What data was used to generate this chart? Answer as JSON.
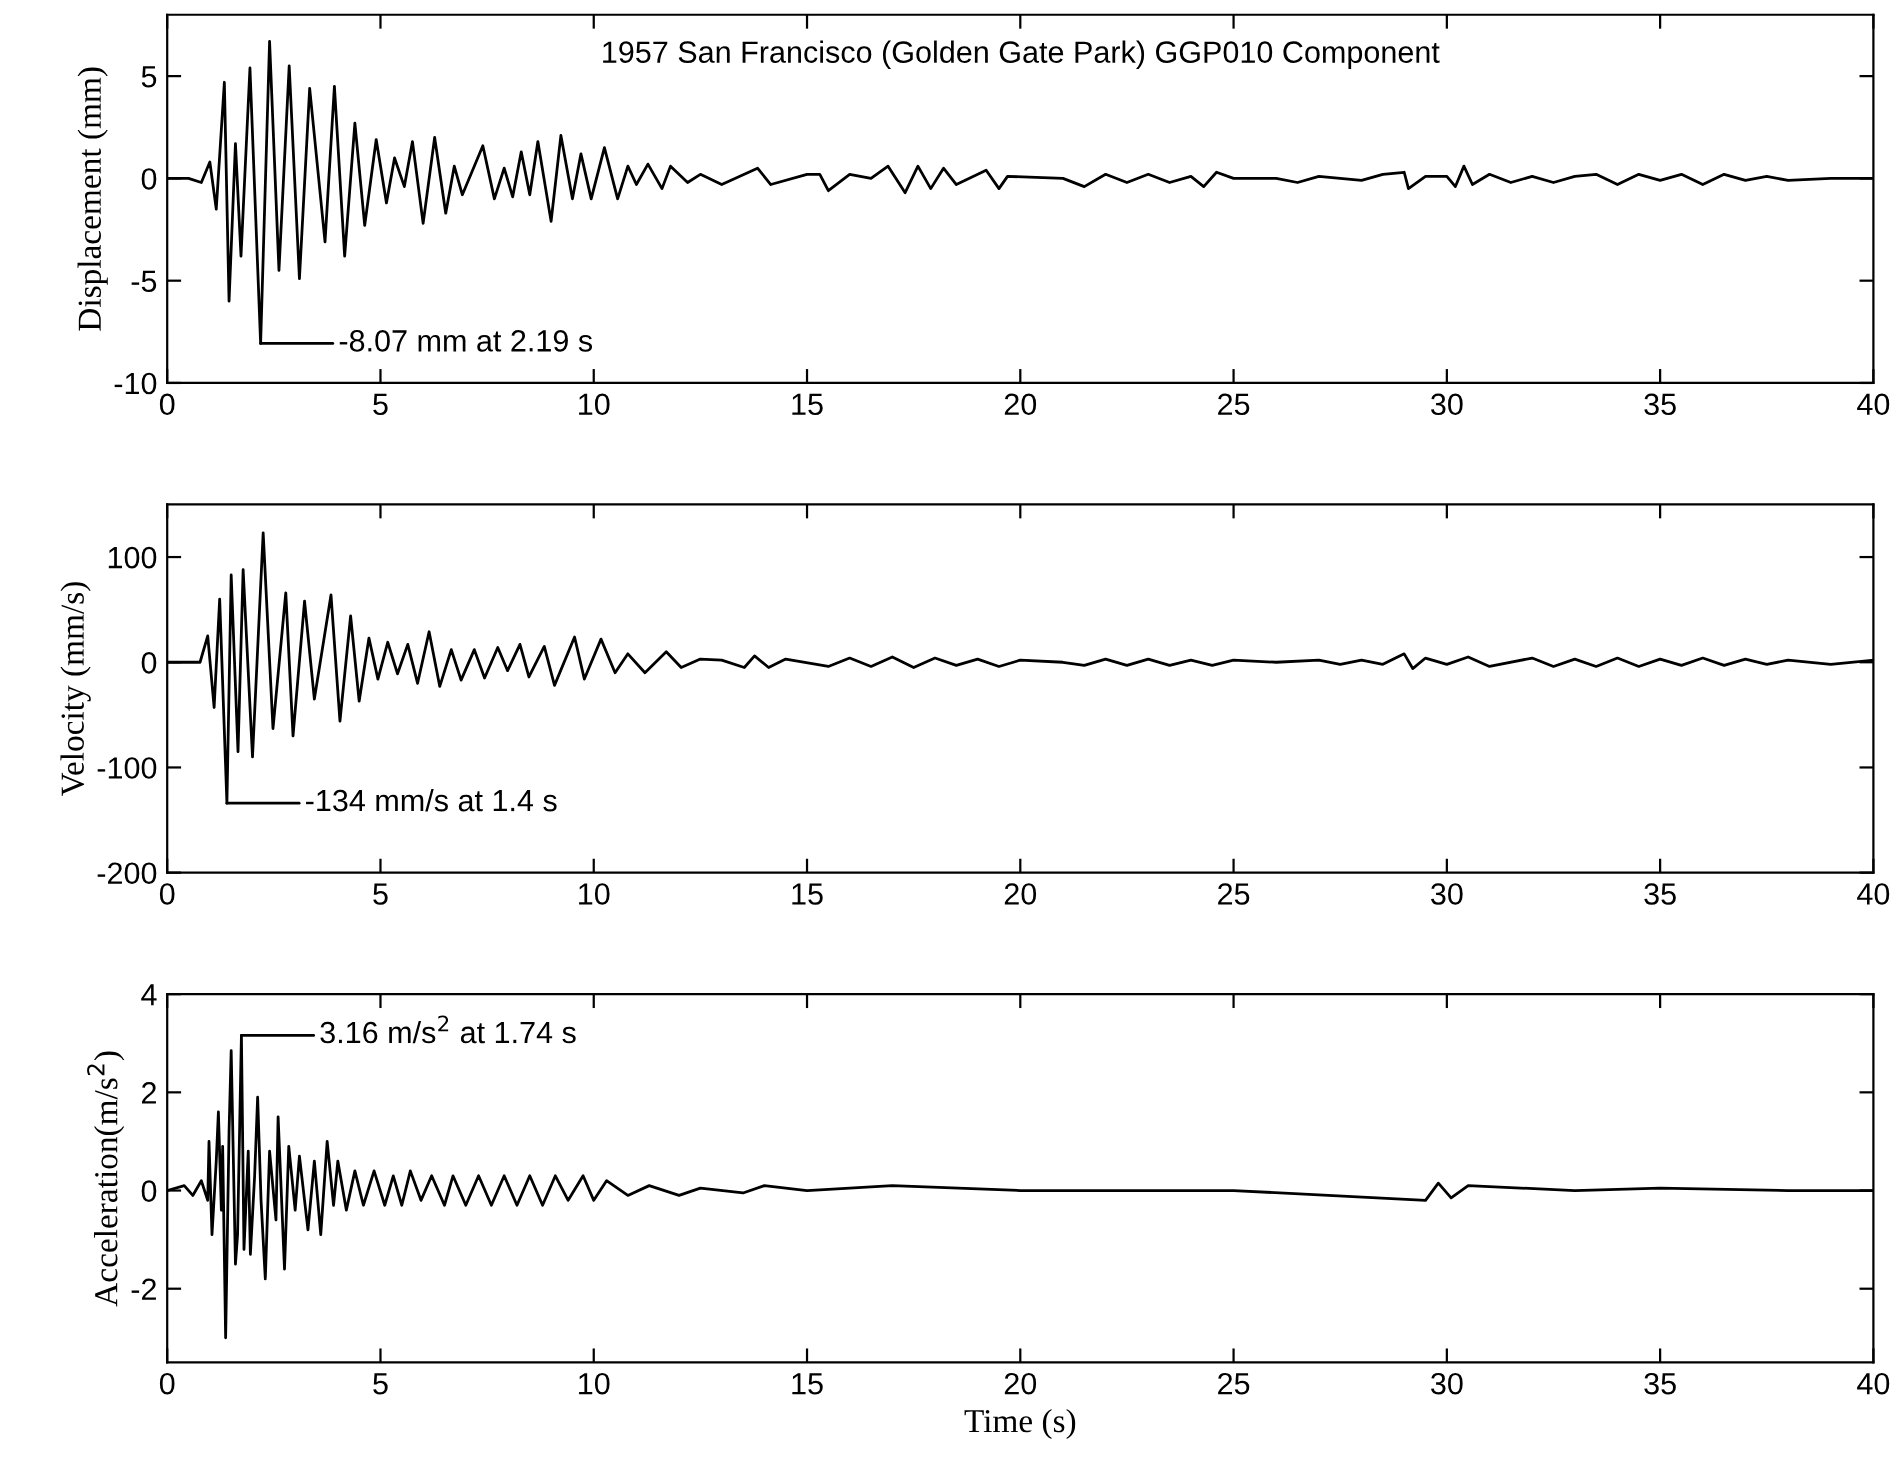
{
  "chart_data": [
    {
      "type": "line",
      "title": "1957 San Francisco (Golden Gate Park) GGP010 Component",
      "ylabel": "Displacement (mm)",
      "xlim": [
        0,
        40
      ],
      "xticks": [
        0,
        5,
        10,
        15,
        20,
        25,
        30,
        35,
        40
      ],
      "ylim": [
        -10,
        8
      ],
      "yticks": [
        -10,
        -5,
        0,
        5
      ],
      "grid": false,
      "annotations": [
        {
          "text": "-8.07 mm at 2.19 s",
          "x": 2.19,
          "y": -8.07
        }
      ],
      "series": [
        {
          "color": "#000000",
          "x": [
            0,
            0.5,
            0.8,
            1.0,
            1.15,
            1.34,
            1.45,
            1.6,
            1.73,
            1.94,
            2.19,
            2.4,
            2.62,
            2.86,
            3.1,
            3.34,
            3.7,
            3.92,
            4.16,
            4.4,
            4.63,
            4.9,
            5.14,
            5.33,
            5.56,
            5.75,
            6.0,
            6.27,
            6.53,
            6.73,
            6.92,
            7.4,
            7.67,
            7.9,
            8.1,
            8.3,
            8.5,
            8.69,
            9.0,
            9.23,
            9.5,
            9.7,
            9.94,
            10.25,
            10.56,
            10.8,
            11.0,
            11.27,
            11.6,
            11.8,
            12.2,
            12.5,
            13.0,
            13.84,
            14.15,
            15.0,
            15.3,
            15.5,
            16.0,
            16.5,
            16.9,
            17.3,
            17.6,
            17.9,
            18.2,
            18.5,
            19.2,
            19.5,
            19.7,
            21.0,
            21.5,
            22.0,
            22.5,
            23.0,
            23.5,
            24.0,
            24.3,
            24.6,
            25.0,
            26.0,
            26.5,
            27.0,
            28.0,
            28.5,
            29.0,
            29.1,
            29.5,
            30.0,
            30.2,
            30.4,
            30.6,
            31.0,
            31.5,
            32.0,
            32.5,
            33.0,
            33.5,
            34.0,
            34.5,
            35.0,
            35.5,
            36.0,
            36.5,
            37.0,
            37.5,
            38.0,
            39.0,
            40.0
          ],
          "values": [
            0,
            0,
            -0.2,
            0.8,
            -1.5,
            4.7,
            -6,
            1.7,
            -3.8,
            5.4,
            -8.07,
            6.7,
            -4.5,
            5.5,
            -4.9,
            4.4,
            -3.1,
            4.5,
            -3.8,
            2.7,
            -2.3,
            1.9,
            -1.2,
            1.0,
            -0.4,
            1.8,
            -2.2,
            2.0,
            -1.7,
            0.6,
            -0.8,
            1.6,
            -1.0,
            0.5,
            -0.9,
            1.3,
            -0.8,
            1.8,
            -2.1,
            2.1,
            -1.0,
            1.2,
            -1.0,
            1.5,
            -1.0,
            0.6,
            -0.3,
            0.7,
            -0.5,
            0.6,
            -0.2,
            0.2,
            -0.3,
            0.5,
            -0.3,
            0.2,
            0.2,
            -0.6,
            0.2,
            0,
            0.6,
            -0.7,
            0.6,
            -0.5,
            0.5,
            -0.3,
            0.4,
            -0.5,
            0.1,
            0,
            -0.4,
            0.2,
            -0.2,
            0.2,
            -0.2,
            0.1,
            -0.4,
            0.3,
            0,
            0,
            -0.2,
            0.1,
            -0.1,
            0.2,
            0.3,
            -0.5,
            0.1,
            0.1,
            -0.4,
            0.6,
            -0.3,
            0.2,
            -0.2,
            0.1,
            -0.2,
            0.1,
            0.2,
            -0.3,
            0.2,
            -0.1,
            0.2,
            -0.3,
            0.2,
            -0.1,
            0.1,
            -0.1,
            0,
            0
          ]
        }
      ]
    },
    {
      "type": "line",
      "ylabel": "Velocity (mm/s)",
      "xlim": [
        0,
        40
      ],
      "xticks": [
        0,
        5,
        10,
        15,
        20,
        25,
        30,
        35,
        40
      ],
      "ylim": [
        -200,
        150
      ],
      "yticks": [
        -200,
        -100,
        0,
        100
      ],
      "grid": false,
      "annotations": [
        {
          "text": "-134 mm/s at 1.4 s",
          "x": 1.4,
          "y": -134
        }
      ],
      "series": [
        {
          "color": "#000000",
          "x": [
            0,
            0.4,
            0.77,
            0.95,
            1.1,
            1.23,
            1.4,
            1.5,
            1.66,
            1.78,
            2.0,
            2.25,
            2.48,
            2.78,
            2.95,
            3.22,
            3.45,
            3.84,
            4.05,
            4.3,
            4.5,
            4.73,
            4.94,
            5.17,
            5.4,
            5.64,
            5.87,
            6.14,
            6.39,
            6.66,
            6.89,
            7.2,
            7.44,
            7.75,
            7.98,
            8.27,
            8.48,
            8.84,
            9.08,
            9.55,
            9.78,
            10.17,
            10.5,
            10.8,
            11.2,
            11.7,
            12.05,
            12.5,
            13.0,
            13.53,
            13.77,
            14.1,
            14.5,
            15.5,
            16,
            16.5,
            17,
            17.5,
            18,
            18.5,
            19,
            19.5,
            20,
            21,
            21.5,
            22,
            22.5,
            23,
            23.5,
            24,
            24.5,
            25,
            26,
            27,
            27.5,
            28,
            28.5,
            29,
            29.2,
            29.5,
            30,
            30.5,
            31,
            32,
            32.5,
            33,
            33.5,
            34,
            34.5,
            35,
            35.5,
            36,
            36.5,
            37,
            37.5,
            38,
            39,
            40
          ],
          "values": [
            0,
            0,
            0,
            25,
            -43,
            60,
            -134,
            83,
            -85,
            88,
            -90,
            123,
            -63,
            66,
            -70,
            58,
            -35,
            64,
            -56,
            44,
            -37,
            23,
            -16,
            19,
            -11,
            17,
            -20,
            29,
            -23,
            12,
            -17,
            12,
            -15,
            14,
            -8,
            17,
            -14,
            15,
            -22,
            24,
            -16,
            22,
            -10,
            8,
            -10,
            10,
            -5,
            3,
            2,
            -5,
            6,
            -5,
            3,
            -4,
            4,
            -4,
            5,
            -5,
            4,
            -3,
            3,
            -4,
            2,
            0,
            -3,
            3,
            -3,
            3,
            -3,
            2,
            -3,
            2,
            0,
            2,
            -2,
            2,
            -2,
            8,
            -6,
            4,
            -2,
            5,
            -4,
            4,
            -4,
            3,
            -4,
            4,
            -4,
            3,
            -3,
            4,
            -3,
            3,
            -2,
            2,
            -2,
            2
          ]
        }
      ]
    },
    {
      "type": "line",
      "ylabel": "Acceleration(m/s$^{2}$)",
      "xlabel": "Time (s)",
      "xlim": [
        0,
        40
      ],
      "xticks": [
        0,
        5,
        10,
        15,
        20,
        25,
        30,
        35,
        40
      ],
      "ylim": [
        -3.5,
        4
      ],
      "yticks": [
        -2,
        0,
        2,
        4
      ],
      "grid": false,
      "annotations": [
        {
          "text": "3.16 m/s$^{2}$ at 1.74 s",
          "x": 1.74,
          "y": 3.16
        }
      ],
      "series": [
        {
          "color": "#000000",
          "x": [
            0,
            0.4,
            0.6,
            0.8,
            0.95,
            0.98,
            1.05,
            1.15,
            1.2,
            1.27,
            1.3,
            1.37,
            1.45,
            1.5,
            1.6,
            1.65,
            1.74,
            1.8,
            1.9,
            1.95,
            2.05,
            2.12,
            2.2,
            2.3,
            2.4,
            2.55,
            2.6,
            2.75,
            2.85,
            3.0,
            3.1,
            3.3,
            3.45,
            3.6,
            3.75,
            3.9,
            4.0,
            4.2,
            4.4,
            4.6,
            4.85,
            5.1,
            5.3,
            5.5,
            5.7,
            5.95,
            6.2,
            6.5,
            6.7,
            7.0,
            7.3,
            7.6,
            7.9,
            8.2,
            8.5,
            8.8,
            9.1,
            9.4,
            9.75,
            10.0,
            10.3,
            10.8,
            11.3,
            12.0,
            12.5,
            13.5,
            14.0,
            15.0,
            17.0,
            20.0,
            25.0,
            29.5,
            29.8,
            30.1,
            30.5,
            33.0,
            35.0,
            38.0,
            40.0
          ],
          "values": [
            0,
            0.1,
            -0.1,
            0.2,
            -0.2,
            1.0,
            -0.9,
            0.6,
            1.6,
            -0.4,
            0.9,
            -3.0,
            1.2,
            2.85,
            -1.5,
            -0.9,
            3.16,
            -1.2,
            0.8,
            -1.3,
            0.3,
            1.9,
            -0.2,
            -1.8,
            0.8,
            -0.6,
            1.5,
            -1.6,
            0.9,
            -0.4,
            0.7,
            -0.8,
            0.6,
            -0.9,
            1.0,
            -0.3,
            0.6,
            -0.4,
            0.4,
            -0.3,
            0.4,
            -0.3,
            0.3,
            -0.3,
            0.4,
            -0.2,
            0.3,
            -0.3,
            0.3,
            -0.3,
            0.3,
            -0.3,
            0.3,
            -0.3,
            0.3,
            -0.3,
            0.3,
            -0.2,
            0.3,
            -0.2,
            0.2,
            -0.1,
            0.1,
            -0.1,
            0.05,
            -0.05,
            0.1,
            0,
            0.1,
            0,
            0,
            -0.2,
            0.15,
            -0.15,
            0.1,
            0,
            0.05,
            0,
            0
          ]
        }
      ]
    }
  ]
}
